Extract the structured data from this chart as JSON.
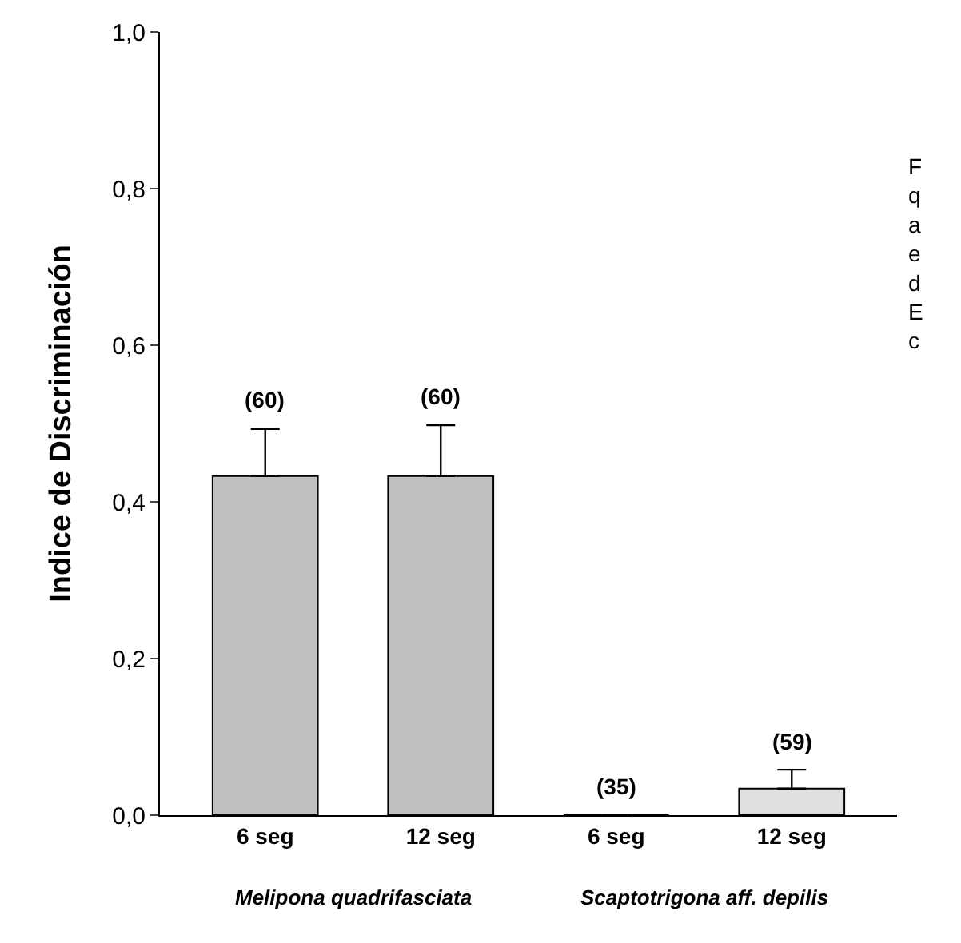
{
  "chart_data": {
    "type": "bar",
    "ylabel": "Indice de Discriminación",
    "categories": [
      "6 seg",
      "12 seg",
      "6 seg",
      "12 seg"
    ],
    "values": [
      0.433,
      0.433,
      0,
      0.034
    ],
    "errors": [
      0.06,
      0.065,
      null,
      0.024
    ],
    "colors": [
      "#c0c0c0",
      "#c0c0c0",
      "#c0c0c0",
      "#e0e0e0"
    ],
    "ylim": [
      0,
      1.0
    ],
    "yticks": [
      {
        "value": 0,
        "label": "0,0"
      },
      {
        "value": 0.2,
        "label": "0,2"
      },
      {
        "value": 0.4,
        "label": "0,4"
      },
      {
        "value": 0.6,
        "label": "0,6"
      },
      {
        "value": 0.8,
        "label": "0,8"
      },
      {
        "value": 1.0,
        "label": "1,0"
      }
    ],
    "legend": false,
    "annotations": [
      "(60)",
      "(60)",
      "(35)",
      "(59)",
      "Melipona quadrifasciata",
      "Scaptotrigona aff. depilis",
      "F\nq\na\ne\nd\nE\nc"
    ]
  }
}
